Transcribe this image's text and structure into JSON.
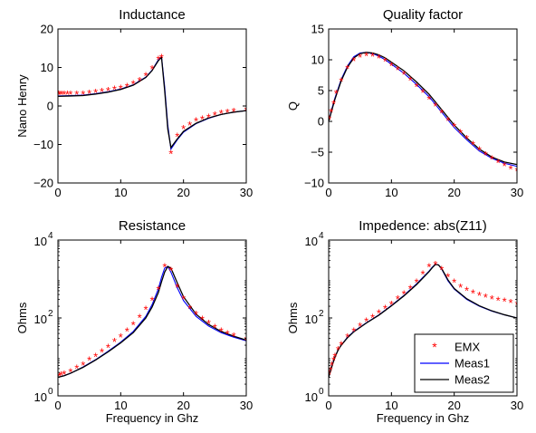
{
  "chart_data": [
    {
      "id": "inductance",
      "type": "line",
      "title": "Inductance",
      "xlabel": "",
      "ylabel": "Nano Henry",
      "xlim": [
        0,
        30
      ],
      "ylim": [
        -20,
        20
      ],
      "yscale": "linear",
      "xticks": [
        0,
        10,
        20,
        30
      ],
      "yticks": [
        -20,
        -10,
        0,
        10,
        20
      ],
      "xtick_labels": [
        "0",
        "10",
        "20",
        "30"
      ],
      "ytick_labels": [
        "−20",
        "−10",
        "0",
        "10",
        "20"
      ],
      "series": [
        {
          "name": "EMX",
          "style": "marker",
          "color": "#ff0000",
          "x": [
            0.1,
            0.3,
            0.6,
            1.0,
            1.5,
            2.0,
            3.0,
            4.0,
            5.0,
            6.0,
            7.0,
            8.0,
            9.0,
            10.0,
            11.0,
            12.0,
            13.0,
            14.0,
            15.0,
            16.0,
            16.5,
            18.0,
            19.0,
            20.0,
            21.0,
            22.0,
            23.0,
            24.0,
            25.0,
            26.0,
            27.0,
            28.0,
            30.0
          ],
          "y": [
            3,
            3,
            3,
            3,
            3,
            3,
            3,
            3,
            3.2,
            3.4,
            3.6,
            3.9,
            4.2,
            4.5,
            5.0,
            5.6,
            6.5,
            7.8,
            9.5,
            12.0,
            12.5,
            -12.5,
            -8,
            -6,
            -5,
            -4,
            -3.5,
            -3,
            -2.5,
            -2,
            -1.8,
            -1.5,
            -1.2
          ]
        },
        {
          "name": "Meas1",
          "style": "line",
          "color": "#0000ff",
          "x": [
            0,
            2,
            4,
            6,
            8,
            10,
            12,
            14,
            15,
            16,
            16.5,
            17,
            17.5,
            18,
            19,
            20,
            22,
            24,
            26,
            28,
            30
          ],
          "y": [
            2.6,
            2.7,
            2.8,
            3.2,
            3.7,
            4.4,
            5.5,
            7.5,
            9.3,
            12.0,
            12.8,
            5,
            -5,
            -11.2,
            -8.8,
            -6.8,
            -4.6,
            -3.2,
            -2.2,
            -1.6,
            -1.2
          ]
        },
        {
          "name": "Meas2",
          "style": "line",
          "color": "#000000",
          "x": [
            0,
            2,
            4,
            6,
            8,
            10,
            12,
            14,
            15,
            16,
            16.5,
            17,
            17.5,
            18,
            19,
            20,
            22,
            24,
            26,
            28,
            30
          ],
          "y": [
            2.5,
            2.6,
            2.7,
            3.1,
            3.6,
            4.3,
            5.4,
            7.4,
            9.2,
            11.8,
            12.6,
            4,
            -6,
            -10.8,
            -8.6,
            -6.6,
            -4.5,
            -3.1,
            -2.2,
            -1.6,
            -1.2
          ]
        }
      ]
    },
    {
      "id": "quality-factor",
      "type": "line",
      "title": "Quality factor",
      "xlabel": "",
      "ylabel": "Q",
      "xlim": [
        0,
        30
      ],
      "ylim": [
        -10,
        15
      ],
      "yscale": "linear",
      "xticks": [
        0,
        10,
        20,
        30
      ],
      "yticks": [
        -10,
        -5,
        0,
        5,
        10,
        15
      ],
      "xtick_labels": [
        "0",
        "10",
        "20",
        "30"
      ],
      "ytick_labels": [
        "−10",
        "−5",
        "0",
        "5",
        "10",
        "15"
      ],
      "series": [
        {
          "name": "EMX",
          "style": "marker",
          "color": "#ff0000",
          "x": [
            0.1,
            0.4,
            0.8,
            1.2,
            2.0,
            3.0,
            4.0,
            5.0,
            6.0,
            7.0,
            8.0,
            9.0,
            10.0,
            11.0,
            12.0,
            13.0,
            14.0,
            15.0,
            16.0,
            17.0,
            18.0,
            19.0,
            20.0,
            21.0,
            22.0,
            23.0,
            24.0,
            25.0,
            26.0,
            27.0,
            28.0,
            29.0,
            30.0
          ],
          "y": [
            0.3,
            1.5,
            2.8,
            4.5,
            6.5,
            8.5,
            9.8,
            10.4,
            10.6,
            10.5,
            10.2,
            9.7,
            9.0,
            8.3,
            7.6,
            6.6,
            5.6,
            4.6,
            3.5,
            2.4,
            1.3,
            0.1,
            -0.9,
            -1.9,
            -2.9,
            -3.8,
            -4.7,
            -5.5,
            -6.2,
            -6.8,
            -7.3,
            -7.8,
            -8.1
          ]
        },
        {
          "name": "Meas1",
          "style": "line",
          "color": "#0000ff",
          "x": [
            0,
            0.5,
            1,
            2,
            3,
            4,
            5,
            6,
            7,
            8,
            9,
            10,
            12,
            14,
            16,
            18,
            20,
            22,
            24,
            26,
            28,
            30
          ],
          "y": [
            0,
            2.0,
            3.8,
            6.8,
            9.0,
            10.5,
            11.1,
            11.2,
            11.0,
            10.6,
            10.0,
            9.3,
            7.8,
            6.0,
            4.0,
            1.5,
            -1.0,
            -3.0,
            -4.8,
            -6.0,
            -6.8,
            -7.3
          ]
        },
        {
          "name": "Meas2",
          "style": "line",
          "color": "#000000",
          "x": [
            0,
            0.5,
            1,
            2,
            3,
            4,
            5,
            6,
            7,
            8,
            9,
            10,
            12,
            14,
            16,
            18,
            20,
            22,
            24,
            26,
            28,
            30
          ],
          "y": [
            0,
            1.8,
            3.6,
            6.6,
            8.8,
            10.3,
            11.0,
            11.2,
            11.1,
            10.8,
            10.3,
            9.6,
            8.2,
            6.4,
            4.4,
            1.9,
            -0.6,
            -2.7,
            -4.5,
            -5.8,
            -6.6,
            -7.0
          ]
        }
      ]
    },
    {
      "id": "resistance",
      "type": "line",
      "title": "Resistance",
      "xlabel": "Frequency in Ghz",
      "ylabel": "Ohms",
      "xlim": [
        0,
        30
      ],
      "ylim": [
        1,
        10000
      ],
      "yscale": "log",
      "xticks": [
        0,
        10,
        20,
        30
      ],
      "yticks": [
        1,
        100,
        10000
      ],
      "xtick_labels": [
        "0",
        "10",
        "20",
        "30"
      ],
      "ytick_labels": [
        {
          "base": "10",
          "exp": "0"
        },
        {
          "base": "10",
          "exp": "2"
        },
        {
          "base": "10",
          "exp": "4"
        }
      ],
      "series": [
        {
          "name": "EMX",
          "style": "marker",
          "color": "#ff0000",
          "x": [
            0.2,
            0.5,
            1.0,
            2.0,
            3.0,
            4.0,
            5.0,
            6.0,
            7.0,
            8.0,
            9.0,
            10.0,
            11.0,
            12.0,
            13.0,
            14.0,
            15.0,
            16.0,
            17.0,
            18.0,
            19.0,
            20.0,
            21.0,
            22.0,
            23.0,
            24.0,
            25.0,
            26.0,
            27.0,
            28.0,
            30.0
          ],
          "y": [
            3.2,
            3.3,
            3.5,
            4,
            5,
            6,
            8,
            10,
            13,
            17,
            24,
            32,
            45,
            65,
            100,
            160,
            280,
            520,
            2000,
            1600,
            600,
            300,
            170,
            120,
            90,
            70,
            55,
            45,
            38,
            33,
            27
          ]
        },
        {
          "name": "Meas1",
          "style": "line",
          "color": "#0000ff",
          "x": [
            0,
            1,
            2,
            4,
            6,
            8,
            10,
            12,
            14,
            15,
            16,
            16.5,
            17,
            17.5,
            18,
            19,
            20,
            22,
            24,
            26,
            28,
            30
          ],
          "y": [
            3,
            3.3,
            3.8,
            5.5,
            8.5,
            14,
            24,
            45,
            110,
            220,
            560,
            1100,
            1900,
            2100,
            1500,
            600,
            280,
            110,
            62,
            42,
            32,
            26
          ]
        },
        {
          "name": "Meas2",
          "style": "line",
          "color": "#000000",
          "x": [
            0,
            1,
            2,
            4,
            6,
            8,
            10,
            12,
            14,
            15,
            16,
            16.5,
            17,
            17.5,
            18,
            19,
            20,
            22,
            24,
            26,
            28,
            30
          ],
          "y": [
            3,
            3.3,
            3.8,
            5.4,
            8.3,
            13.5,
            23,
            42,
            100,
            190,
            450,
            850,
            1500,
            2100,
            1900,
            800,
            350,
            125,
            68,
            45,
            34,
            27
          ]
        }
      ]
    },
    {
      "id": "impedance",
      "type": "line",
      "title": "Impedence: abs(Z11)",
      "xlabel": "Frequency in Ghz",
      "ylabel": "Ohms",
      "xlim": [
        0,
        30
      ],
      "ylim": [
        1,
        10000
      ],
      "yscale": "log",
      "xticks": [
        0,
        10,
        20,
        30
      ],
      "yticks": [
        1,
        100,
        10000
      ],
      "xtick_labels": [
        "0",
        "10",
        "20",
        "30"
      ],
      "ytick_labels": [
        {
          "base": "10",
          "exp": "0"
        },
        {
          "base": "10",
          "exp": "2"
        },
        {
          "base": "10",
          "exp": "4"
        }
      ],
      "series": [
        {
          "name": "EMX",
          "style": "marker",
          "color": "#ff0000",
          "x": [
            0.1,
            0.3,
            0.5,
            0.8,
            1.0,
            1.5,
            2.0,
            3.0,
            4.0,
            5.0,
            6.0,
            7.0,
            8.0,
            9.0,
            10.0,
            11.0,
            12.0,
            13.0,
            14.0,
            15.0,
            16.0,
            17.0,
            18.0,
            19.0,
            20.0,
            21.0,
            22.0,
            23.0,
            24.0,
            25.0,
            26.0,
            27.0,
            28.0,
            29.0,
            30.0
          ],
          "y": [
            3.5,
            4.5,
            6,
            8,
            10,
            15,
            20,
            32,
            45,
            60,
            80,
            100,
            130,
            170,
            220,
            300,
            400,
            550,
            800,
            1300,
            2000,
            2300,
            1700,
            1100,
            800,
            600,
            500,
            420,
            370,
            330,
            300,
            280,
            260,
            240,
            220
          ]
        },
        {
          "name": "Meas1",
          "style": "line",
          "color": "#0000ff",
          "x": [
            0,
            0.3,
            0.6,
            1,
            1.5,
            2,
            3,
            4,
            6,
            8,
            10,
            12,
            14,
            15,
            16,
            16.5,
            17,
            17.5,
            18,
            19,
            20,
            22,
            24,
            26,
            28,
            30
          ],
          "y": [
            3,
            4.5,
            6.5,
            10,
            15,
            20,
            32,
            45,
            75,
            120,
            210,
            380,
            750,
            1100,
            1600,
            2000,
            2400,
            2300,
            1800,
            900,
            550,
            300,
            200,
            150,
            120,
            100
          ]
        },
        {
          "name": "Meas2",
          "style": "line",
          "color": "#000000",
          "x": [
            0,
            0.3,
            0.6,
            1,
            1.5,
            2,
            3,
            4,
            6,
            8,
            10,
            12,
            14,
            15,
            16,
            16.5,
            17,
            17.5,
            18,
            19,
            20,
            22,
            24,
            26,
            28,
            30
          ],
          "y": [
            3,
            4.4,
            6.3,
            9.8,
            15,
            20,
            31,
            44,
            74,
            118,
            205,
            370,
            720,
            1050,
            1550,
            1950,
            2350,
            2300,
            1850,
            950,
            570,
            310,
            205,
            152,
            121,
            100
          ]
        }
      ]
    }
  ],
  "legend": {
    "placement": "bottom-right of Impedence: abs(Z11)",
    "entries": [
      {
        "label": "EMX",
        "color": "#ff0000",
        "style": "marker"
      },
      {
        "label": "Meas1",
        "color": "#0000ff",
        "style": "line"
      },
      {
        "label": "Meas2",
        "color": "#000000",
        "style": "line"
      }
    ]
  }
}
